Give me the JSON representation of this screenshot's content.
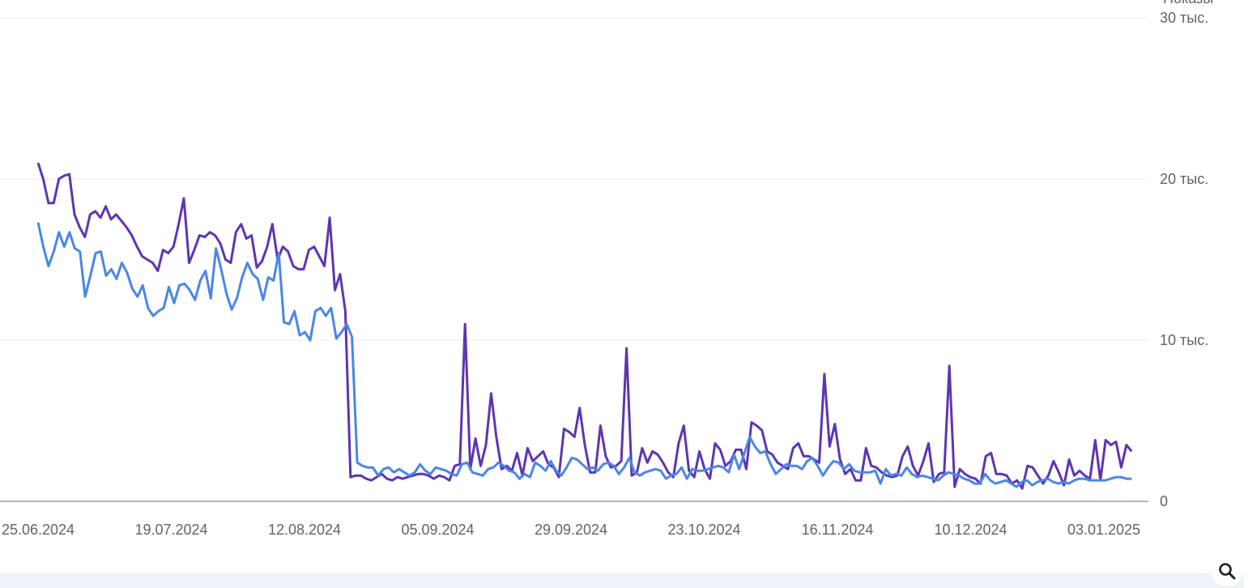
{
  "chart_data": {
    "type": "line",
    "y_axis_title": "Показы",
    "ylim": [
      0,
      30000
    ],
    "y_ticks": [
      {
        "value": 0,
        "label": "0"
      },
      {
        "value": 10000,
        "label": "10 тыс."
      },
      {
        "value": 20000,
        "label": "20 тыс."
      },
      {
        "value": 30000,
        "label": "30 тыс."
      }
    ],
    "x_ticks": [
      "25.06.2024",
      "19.07.2024",
      "12.08.2024",
      "05.09.2024",
      "29.09.2024",
      "23.10.2024",
      "16.11.2024",
      "10.12.2024",
      "03.01.2025"
    ],
    "x_start": "25.06.2024",
    "x_end": "08.01.2025",
    "grid": true,
    "series": [
      {
        "color": "#5e35b1",
        "values": [
          21000,
          20000,
          18500,
          18500,
          20000,
          20200,
          20300,
          17800,
          17000,
          16400,
          17800,
          18000,
          17600,
          18300,
          17500,
          17800,
          17400,
          17000,
          16500,
          15800,
          15200,
          15000,
          14800,
          14300,
          15600,
          15400,
          15800,
          17200,
          18800,
          14800,
          15600,
          16500,
          16400,
          16700,
          16500,
          16000,
          15000,
          14800,
          16700,
          17200,
          16300,
          16500,
          14500,
          14900,
          15800,
          17200,
          15000,
          15800,
          15500,
          14600,
          14400,
          14400,
          15600,
          15800,
          15200,
          14600,
          17600,
          13100,
          14100,
          11800,
          1500,
          1600,
          1600,
          1400,
          1300,
          1500,
          1700,
          1400,
          1300,
          1500,
          1400,
          1500,
          1600,
          1700,
          1700,
          1600,
          1400,
          1600,
          1500,
          1300,
          2200,
          2300,
          11000,
          2000,
          3900,
          2200,
          3500,
          6700,
          4000,
          2000,
          2200,
          1900,
          3000,
          1600,
          3300,
          2500,
          2800,
          3100,
          2300,
          2100,
          1500,
          4500,
          4300,
          4000,
          5800,
          3500,
          1800,
          1800,
          4700,
          2800,
          2100,
          2200,
          2500,
          9500,
          1600,
          1800,
          3300,
          2400,
          3100,
          2900,
          2400,
          1800,
          1500,
          3600,
          4700,
          1900,
          1500,
          3100,
          2000,
          1400,
          3600,
          3200,
          2200,
          2500,
          3200,
          3200,
          2000,
          4900,
          4700,
          4400,
          3100,
          2900,
          2400,
          2200,
          2000,
          3300,
          3600,
          2800,
          2800,
          2600,
          2400,
          7900,
          3400,
          4800,
          2600,
          1700,
          2000,
          1300,
          1300,
          3300,
          2200,
          2100,
          1800,
          1600,
          1500,
          1600,
          2800,
          3400,
          2200,
          1600,
          2500,
          3600,
          1200,
          1700,
          1800,
          8400,
          900,
          2000,
          1700,
          1500,
          1400,
          1100,
          2800,
          3000,
          1700,
          1700,
          1600,
          1100,
          1300,
          800,
          2200,
          2100,
          1600,
          1100,
          1600,
          2500,
          1800,
          1000,
          2600,
          1600,
          1900,
          1600,
          1400,
          3800,
          1300,
          3800,
          3500,
          3700,
          2100,
          3500,
          3100
        ]
      },
      {
        "color": "#4a86e8",
        "values": [
          17300,
          15800,
          14600,
          15500,
          16700,
          15800,
          16700,
          15700,
          15500,
          12700,
          14000,
          15400,
          15500,
          14000,
          14400,
          13800,
          14800,
          14200,
          13200,
          12700,
          13400,
          12000,
          11500,
          11800,
          12000,
          13300,
          12300,
          13400,
          13500,
          13100,
          12500,
          13700,
          14300,
          12600,
          15700,
          14400,
          12900,
          11900,
          12600,
          13900,
          14800,
          14100,
          13800,
          12500,
          13900,
          13700,
          15400,
          11100,
          11000,
          11800,
          10300,
          10500,
          10000,
          11800,
          12000,
          11500,
          12000,
          10100,
          10500,
          11000,
          10200,
          2400,
          2200,
          2100,
          2100,
          1600,
          2000,
          2100,
          1800,
          2000,
          1800,
          1600,
          1800,
          2300,
          1900,
          1700,
          2100,
          2000,
          1900,
          1700,
          1600,
          2300,
          2400,
          1800,
          1700,
          1600,
          2000,
          2100,
          2400,
          2200,
          1900,
          1800,
          1400,
          1700,
          1500,
          2400,
          2200,
          1900,
          2500,
          1900,
          1600,
          2100,
          2700,
          2600,
          2300,
          2000,
          2100,
          1900,
          2300,
          2400,
          2200,
          1700,
          2100,
          2700,
          1800,
          1600,
          1800,
          1900,
          2000,
          1900,
          1400,
          1600,
          1700,
          2100,
          1400,
          2000,
          1900,
          1900,
          2000,
          2100,
          2200,
          2100,
          1800,
          2900,
          2000,
          3000,
          4000,
          3400,
          3000,
          3100,
          2300,
          1700,
          2000,
          2300,
          2200,
          2200,
          2000,
          2500,
          2700,
          2200,
          1600,
          2100,
          2500,
          2400,
          2000,
          2300,
          1900,
          1800,
          1800,
          1800,
          1900,
          1100,
          2000,
          1600,
          1700,
          1600,
          2100,
          1700,
          1500,
          1600,
          1500,
          1400,
          1300,
          1600,
          1800,
          1700,
          1600,
          1400,
          1300,
          1100,
          1100,
          1700,
          1300,
          1100,
          1200,
          1300,
          1100,
          900,
          1200,
          1300,
          1000,
          1200,
          1300,
          1400,
          1200,
          1100,
          1200,
          1100,
          1300,
          1400,
          1400,
          1300,
          1300,
          1300,
          1300,
          1400,
          1500,
          1500,
          1400,
          1400
        ]
      }
    ]
  },
  "toolbar": {
    "zoom_icon": "magnifier-icon"
  }
}
